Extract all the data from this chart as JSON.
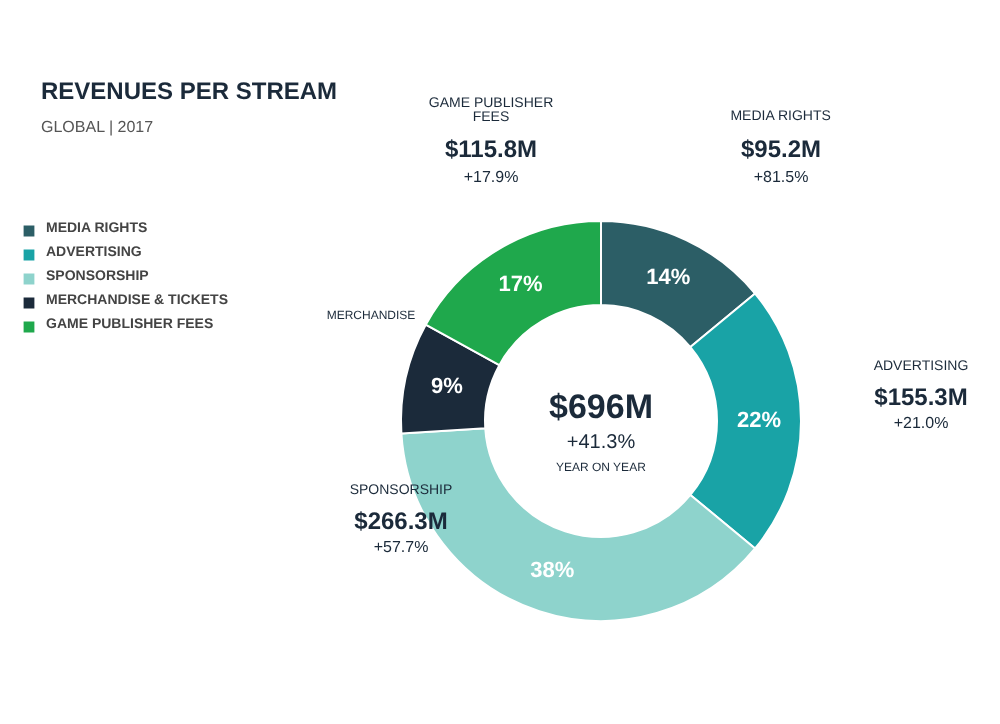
{
  "chart_data": {
    "type": "donut",
    "title": "REVENUES PER STREAM",
    "subtitle": "GLOBAL | 2017",
    "categories": [
      "MEDIA RIGHTS",
      "ADVERTISING",
      "SPONSORSHIP",
      "MERCHANDISE & TICKETS",
      "GAME PUBLISHER FEES"
    ],
    "values": [
      14,
      22,
      38,
      9,
      17
    ],
    "colors": [
      "#2c5e66",
      "#19a3a6",
      "#8ed3cc",
      "#1b2a3a",
      "#1fa84c"
    ],
    "value_labels": [
      "14%",
      "22%",
      "38%",
      "9%",
      "17%"
    ],
    "legend": "left",
    "annotations": [
      "MEDIA RIGHTS",
      "$95.2M",
      "+81.5%",
      "ADVERTISING",
      "$155.3M",
      "+21.0%",
      "SPONSORSHIP",
      "$266.3M",
      "+57.7%",
      "MERCHANDISE",
      "GAME PUBLISHER\nFEES",
      "$115.8M",
      "+17.9%",
      "$696M",
      "+41.3%",
      "YEAR ON YEAR"
    ]
  }
}
